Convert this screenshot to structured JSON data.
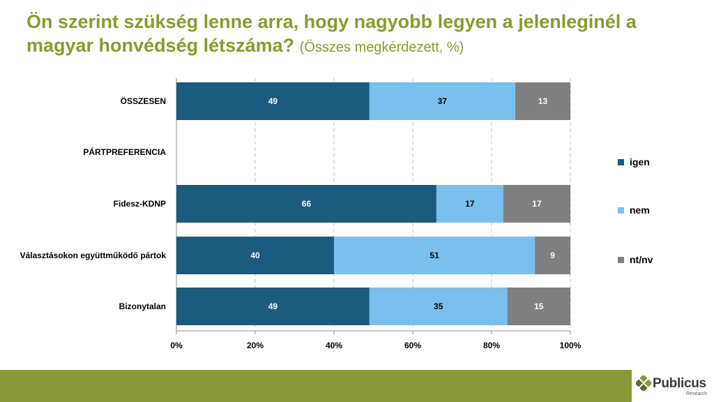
{
  "title": {
    "main": "Ön szerint szükség lenne arra, hogy nagyobb legyen a jelenleginél a magyar honvédség létszáma?",
    "sub": "(Összes megkérdezett, %)"
  },
  "colors": {
    "igen": "#1a5b7e",
    "nem": "#7bbfef",
    "ntnv": "#7f7f7f",
    "title": "#8a9a2a",
    "footer": "#8a9a3a"
  },
  "chart_data": {
    "type": "bar",
    "orientation": "horizontal",
    "stacked": true,
    "categories": [
      "ÖSSZESEN",
      "PÁRTPREFERENCIA",
      "Fidesz-KDNP",
      "Választásokon együttműködő pártok",
      "Bizonytalan"
    ],
    "series": [
      {
        "name": "igen",
        "values": [
          49,
          null,
          66,
          40,
          49
        ]
      },
      {
        "name": "nem",
        "values": [
          37,
          null,
          17,
          51,
          35
        ]
      },
      {
        "name": "nt/nv",
        "values": [
          13,
          null,
          17,
          9,
          15
        ]
      }
    ],
    "xlim": [
      0,
      100
    ],
    "xticks": [
      "0%",
      "20%",
      "40%",
      "60%",
      "80%",
      "100%"
    ],
    "grid": "vertical dashed",
    "legend": "right"
  },
  "logo": {
    "name": "Publicus",
    "sub": "Research"
  }
}
